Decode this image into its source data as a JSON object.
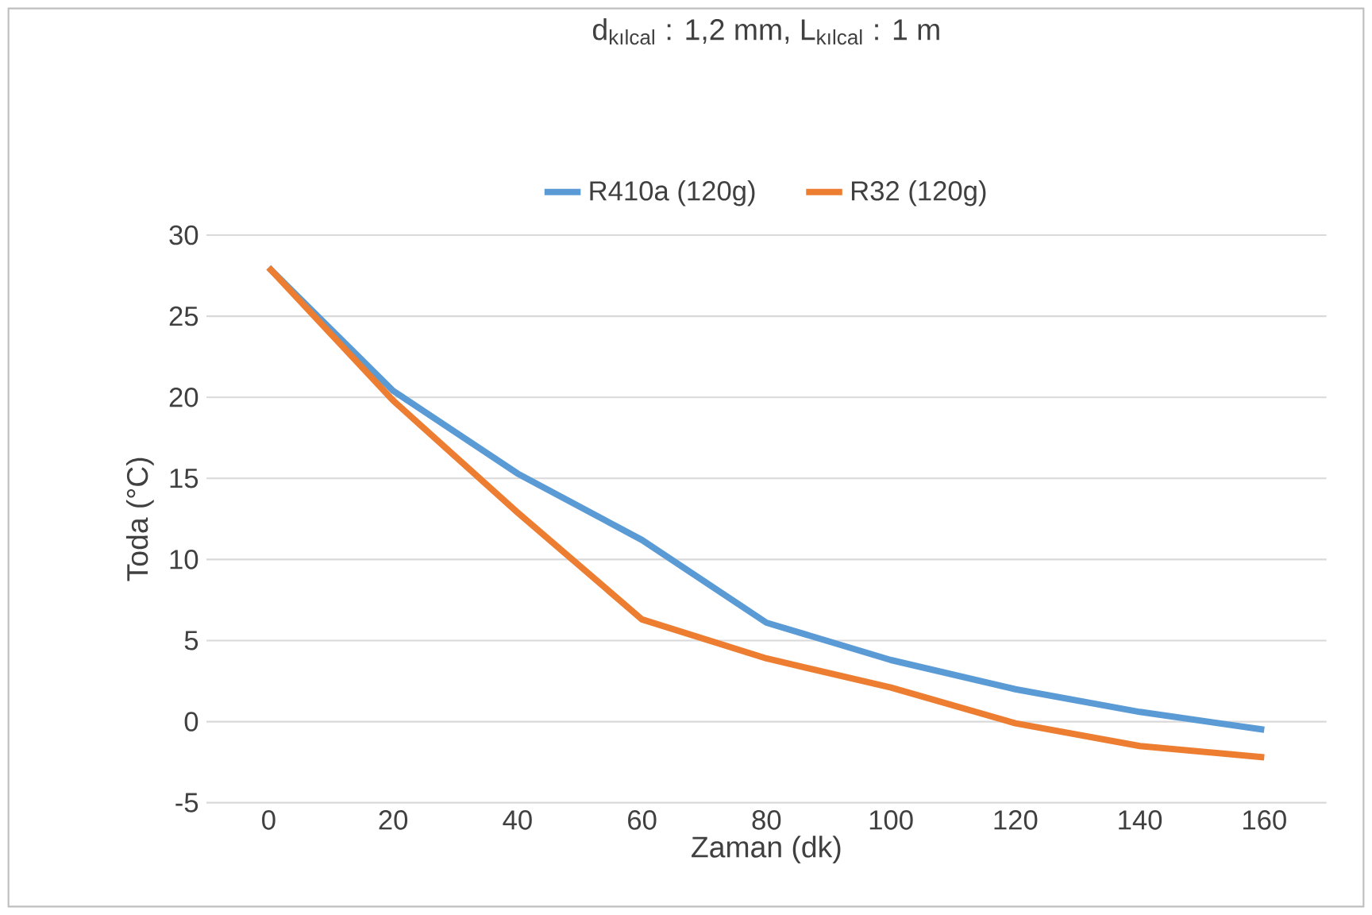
{
  "chart_data": {
    "type": "line",
    "title": "d$_{kılcal}$ : 1,2 mm, L$_{kılcal}$ : 1 m",
    "xlabel": "Zaman (dk)",
    "ylabel": "Toda (°C)",
    "x": [
      0,
      20,
      40,
      60,
      80,
      100,
      120,
      140,
      160
    ],
    "series": [
      {
        "name": "R410a (120g)",
        "color": "#5b9bd5",
        "values": [
          28,
          20.4,
          15.3,
          11.2,
          6.1,
          3.8,
          2.0,
          0.6,
          -0.5
        ]
      },
      {
        "name": "R32 (120g)",
        "color": "#ed7d31",
        "values": [
          28,
          19.8,
          12.9,
          6.3,
          3.9,
          2.1,
          -0.1,
          -1.5,
          -2.2
        ]
      }
    ],
    "xlim": [
      -10,
      170
    ],
    "ylim": [
      -5,
      30
    ],
    "xticks": [
      0,
      20,
      40,
      60,
      80,
      100,
      120,
      140,
      160
    ],
    "yticks": [
      -5,
      0,
      5,
      10,
      15,
      20,
      25,
      30
    ],
    "grid": "y",
    "legend": "top",
    "marker": "none",
    "line_style": "solid"
  }
}
